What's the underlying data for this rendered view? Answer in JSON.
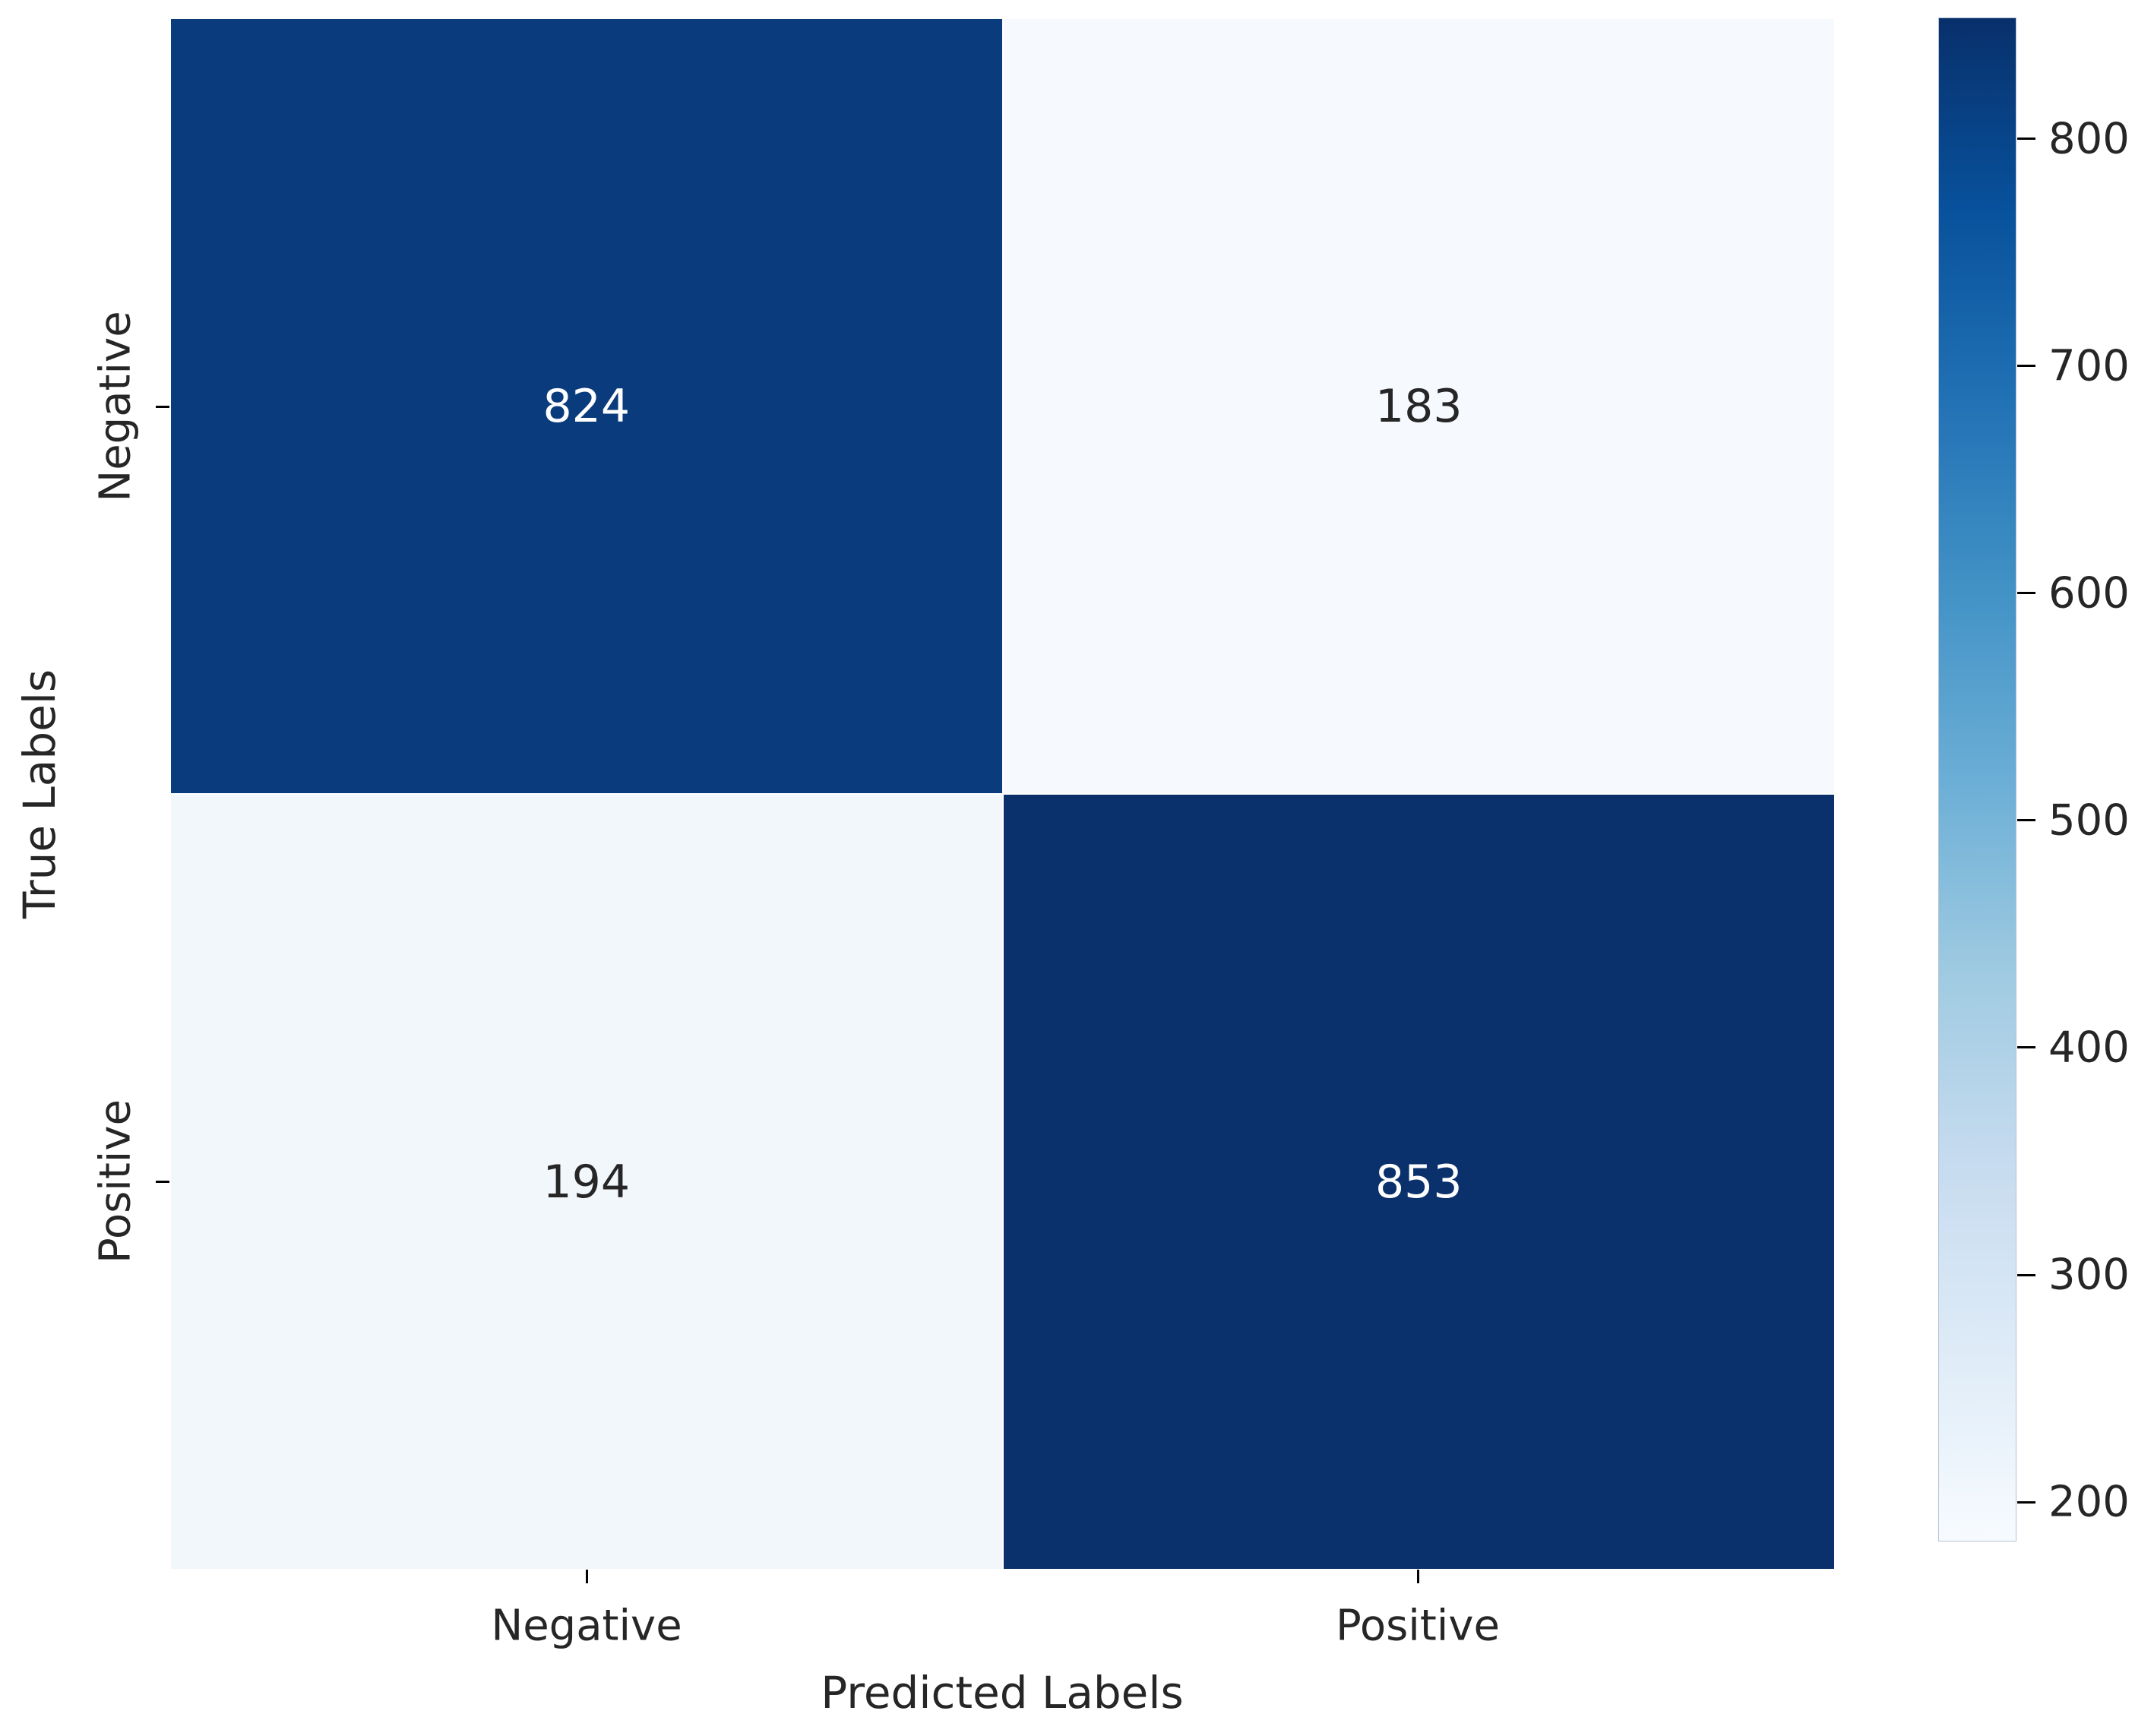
{
  "figure": {
    "background": "#ffffff",
    "text_color": "#262626",
    "tick_mark_color": "#000000"
  },
  "chart_data": {
    "type": "heatmap",
    "title": "",
    "xlabel": "Predicted Labels",
    "ylabel": "True Labels",
    "x_categories": [
      "Negative",
      "Positive"
    ],
    "y_categories": [
      "Negative",
      "Positive"
    ],
    "matrix": [
      [
        824,
        183
      ],
      [
        194,
        853
      ]
    ],
    "matrix_semantics": "rows = true labels (Negative, Positive); columns = predicted labels (Negative, Positive)",
    "vmin": 183,
    "vmax": 853,
    "colormap": "Blues",
    "colorbar_ticks": [
      800,
      700,
      600,
      500,
      400,
      300,
      200
    ],
    "colorbar_position": "right",
    "grid": false,
    "annotations": [
      "824",
      "183",
      "194",
      "853"
    ]
  },
  "cells": [
    {
      "value": "824",
      "bg": "#0a3b7d",
      "fg": "#ffffff"
    },
    {
      "value": "183",
      "bg": "#f6f9fe",
      "fg": "#262626"
    },
    {
      "value": "194",
      "bg": "#f2f7fc",
      "fg": "#262626"
    },
    {
      "value": "853",
      "bg": "#0a316b",
      "fg": "#ffffff"
    }
  ],
  "colorbar": {
    "gradient_top_to_bottom": [
      "#08306b",
      "#08519c",
      "#2171b5",
      "#4292c6",
      "#6baed6",
      "#9ecae1",
      "#c6dbef",
      "#deebf7",
      "#f7fbff"
    ]
  }
}
